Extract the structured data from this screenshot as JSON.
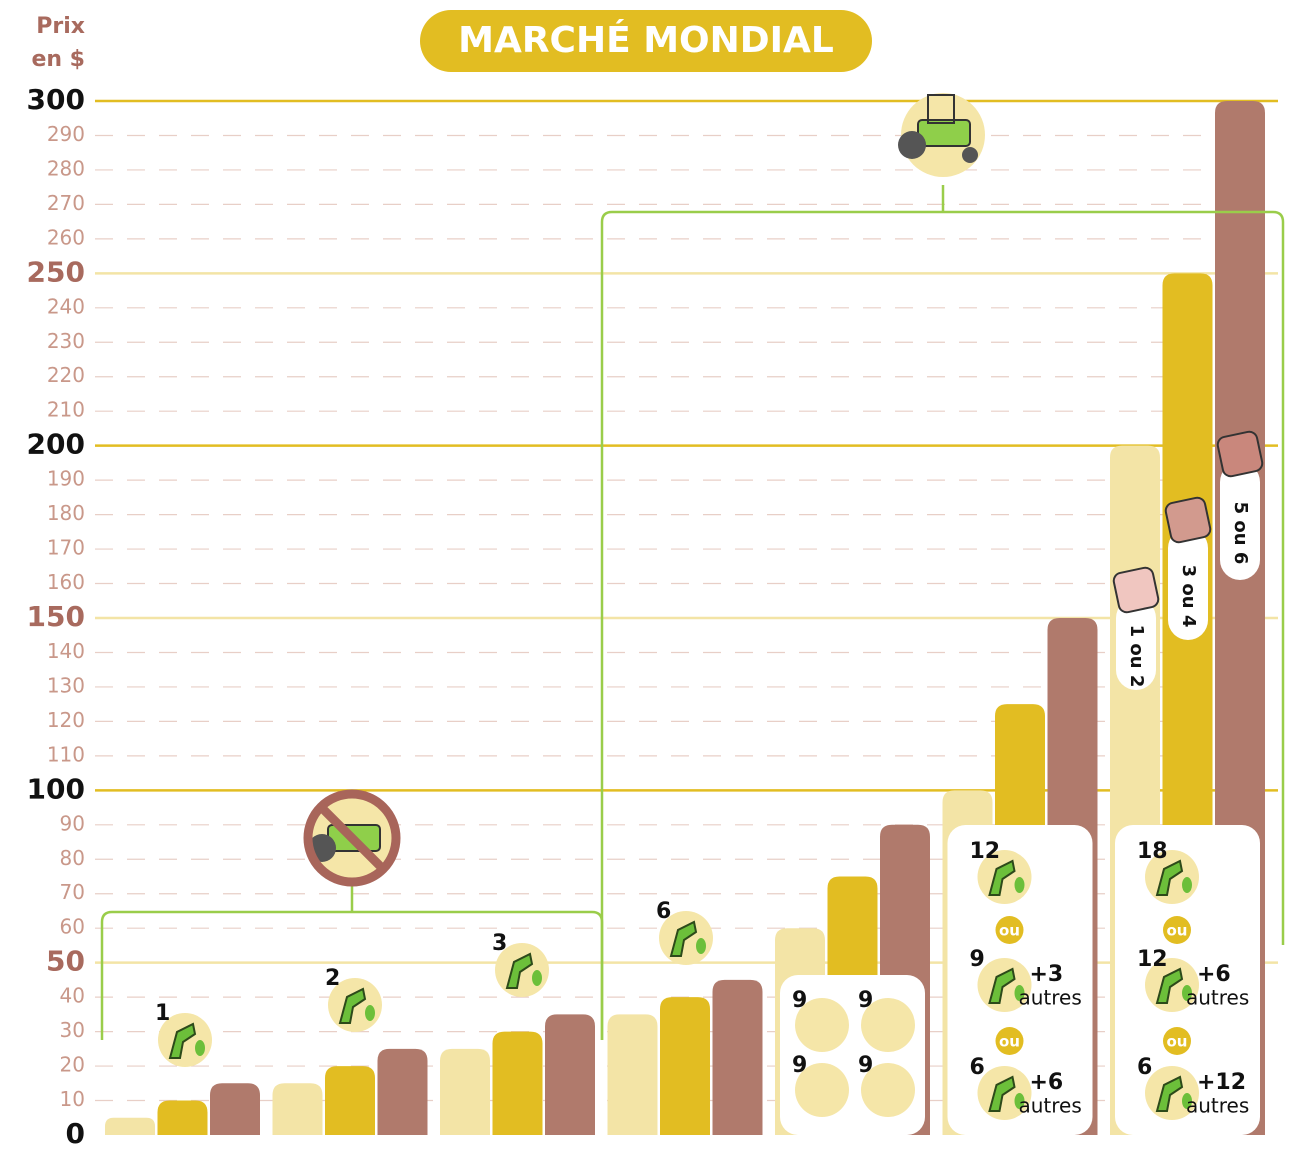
{
  "chart_data": {
    "type": "bar",
    "title": "MARCHÉ MONDIAL",
    "y_label": [
      "Prix",
      "en $"
    ],
    "categories": [
      null,
      null,
      null,
      null,
      null,
      null,
      null
    ],
    "series": [
      {
        "color": "#f3e4a6",
        "values": [
          5,
          15,
          25,
          35,
          60,
          100,
          200
        ]
      },
      {
        "color": "#e2bd22",
        "values": [
          10,
          20,
          30,
          40,
          75,
          125,
          250
        ]
      },
      {
        "color": "#b07a6c",
        "values": [
          15,
          25,
          35,
          45,
          90,
          150,
          300
        ]
      }
    ],
    "ylim": [
      0,
      300
    ],
    "yticks": [
      0,
      10,
      20,
      30,
      40,
      50,
      60,
      70,
      80,
      90,
      100,
      110,
      120,
      130,
      140,
      150,
      160,
      170,
      180,
      190,
      200,
      210,
      220,
      230,
      240,
      250,
      260,
      270,
      280,
      290,
      300
    ],
    "grid": true,
    "rewards": [
      {
        "count": 1
      },
      {
        "count": 2
      },
      {
        "count": 3
      },
      {
        "count": 6
      },
      {
        "items": [
          9,
          9,
          9,
          9
        ]
      },
      {
        "separator": "ou",
        "options": [
          {
            "count": 12
          },
          {
            "count": 9,
            "extra": "+3",
            "extra_label": "autres"
          },
          {
            "count": 6,
            "extra": "+6",
            "extra_label": "autres"
          }
        ]
      },
      {
        "separator": "ou",
        "options": [
          {
            "count": 18
          },
          {
            "count": 12,
            "extra": "+6",
            "extra_label": "autres"
          },
          {
            "count": 6,
            "extra": "+12",
            "extra_label": "autres"
          }
        ]
      }
    ],
    "dice": [
      "1 ou 2",
      "3 ou 4",
      "5 ou 6"
    ]
  }
}
